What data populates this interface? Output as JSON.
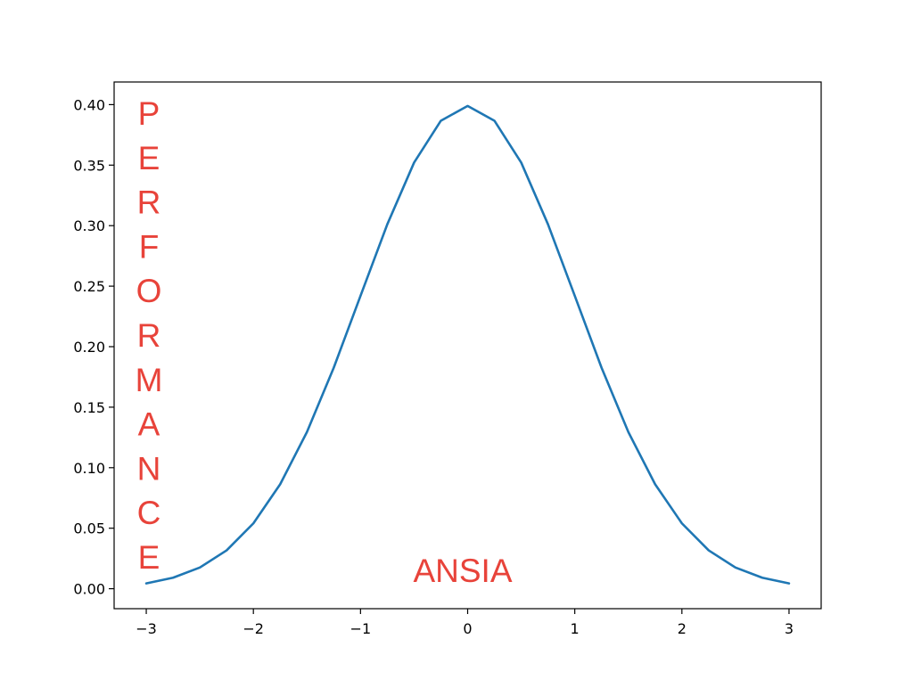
{
  "chart_data": {
    "type": "line",
    "title": "",
    "xlabel": "",
    "ylabel": "",
    "xlim": [
      -3.3,
      3.3
    ],
    "ylim": [
      -0.0165,
      0.4187
    ],
    "grid": false,
    "legend": null,
    "x_ticks": [
      -3,
      -2,
      -1,
      0,
      1,
      2,
      3
    ],
    "x_tick_labels": [
      "−3",
      "−2",
      "−1",
      "0",
      "1",
      "2",
      "3"
    ],
    "y_ticks": [
      0.0,
      0.05,
      0.1,
      0.15,
      0.2,
      0.25,
      0.3,
      0.35,
      0.4
    ],
    "y_tick_labels": [
      "0.00",
      "0.05",
      "0.10",
      "0.15",
      "0.20",
      "0.25",
      "0.30",
      "0.35",
      "0.40"
    ],
    "series": [
      {
        "color": "#1f77b4",
        "x": [
          -3.0,
          -2.75,
          -2.5,
          -2.25,
          -2.0,
          -1.75,
          -1.5,
          -1.25,
          -1.0,
          -0.75,
          -0.5,
          -0.25,
          0.0,
          0.25,
          0.5,
          0.75,
          1.0,
          1.25,
          1.5,
          1.75,
          2.0,
          2.25,
          2.5,
          2.75,
          3.0
        ],
        "y": [
          0.0044,
          0.0091,
          0.0175,
          0.0317,
          0.054,
          0.0863,
          0.1295,
          0.1826,
          0.242,
          0.3011,
          0.3521,
          0.3867,
          0.3989,
          0.3867,
          0.3521,
          0.3011,
          0.242,
          0.1826,
          0.1295,
          0.0863,
          0.054,
          0.0317,
          0.0175,
          0.0091,
          0.0044
        ]
      }
    ],
    "annotations": [
      {
        "text": "PERFORMANCE",
        "color": "#e8433a",
        "orientation": "vertical-stacked"
      },
      {
        "text": "ANSIA",
        "color": "#e8433a",
        "orientation": "horizontal"
      }
    ]
  }
}
